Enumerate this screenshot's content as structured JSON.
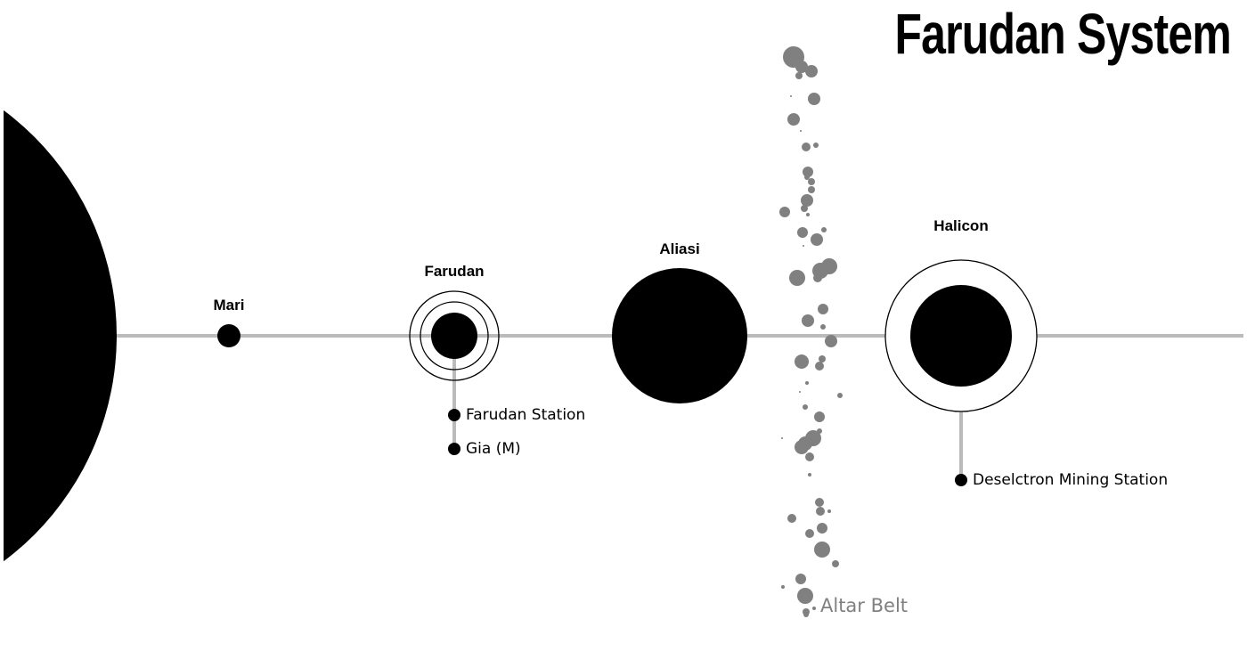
{
  "title": "Farudan System",
  "colors": {
    "body": "#000000",
    "orbit_line": "#bbbbbb",
    "belt": "#808080",
    "background": "#ffffff"
  },
  "planets": [
    {
      "id": "mari",
      "name": "Mari"
    },
    {
      "id": "farudan",
      "name": "Farudan",
      "rings": 2
    },
    {
      "id": "aliasi",
      "name": "Aliasi"
    },
    {
      "id": "halicon",
      "name": "Halicon",
      "rings": 1
    }
  ],
  "satellites": {
    "farudan": [
      "Farudan Station",
      "Gia (M)"
    ],
    "halicon": [
      "Deselctron Mining Station"
    ]
  },
  "belt": {
    "name": "Altar Belt"
  }
}
